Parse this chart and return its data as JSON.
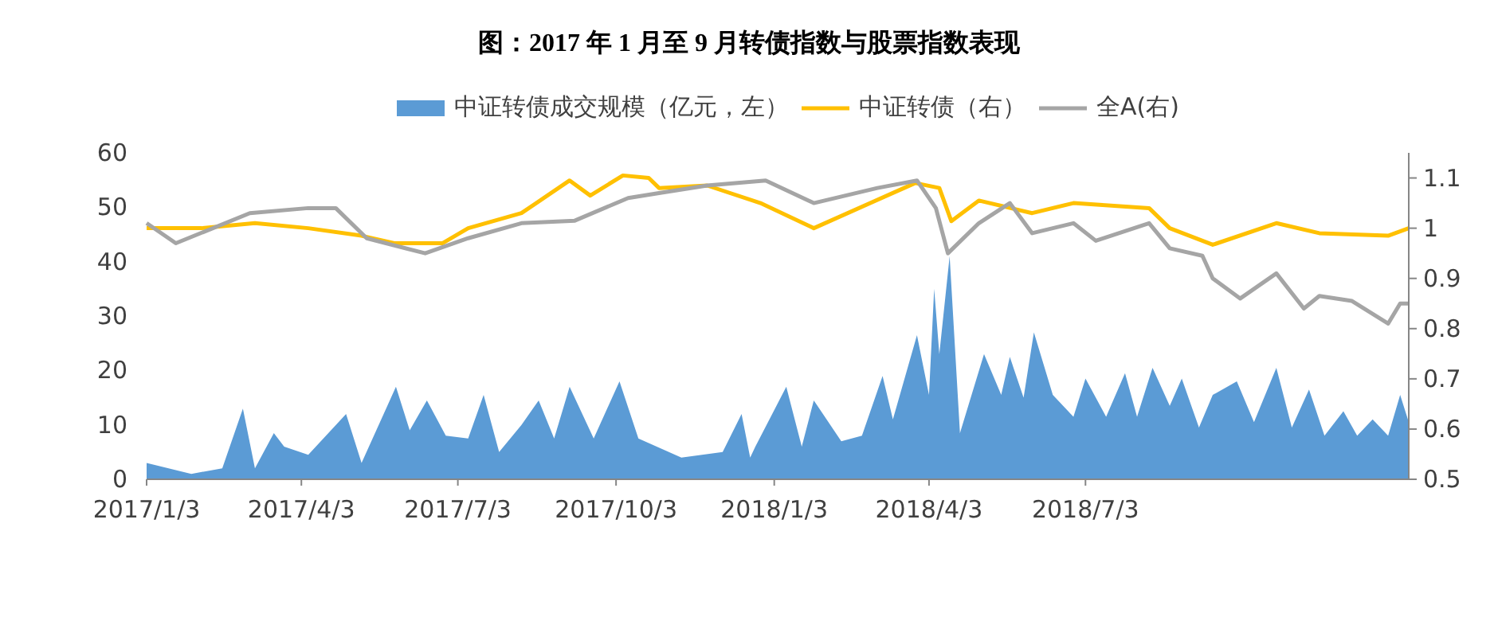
{
  "chart_data": {
    "type": "line",
    "title": "图：2017 年 1 月至 9 月转债指数与股票指数表现",
    "legend": "top",
    "grid": false,
    "xlim": [
      "2017-01-03",
      "2019-01-07"
    ],
    "xticks": [
      {
        "value": "2017-01-03",
        "label": "2017/1/3"
      },
      {
        "value": "2017-04-03",
        "label": "2017/4/3"
      },
      {
        "value": "2017-07-03",
        "label": "2017/7/3"
      },
      {
        "value": "2017-10-03",
        "label": "2017/10/3"
      },
      {
        "value": "2018-01-03",
        "label": "2018/1/3"
      },
      {
        "value": "2018-04-03",
        "label": "2018/4/3"
      },
      {
        "value": "2018-07-03",
        "label": "2018/7/3"
      }
    ],
    "ylim": [
      0,
      60
    ],
    "yticks": [
      0,
      10,
      20,
      30,
      40,
      50,
      60
    ],
    "y2lim": [
      0.5,
      1.15
    ],
    "y2ticks": [
      0.5,
      0.6,
      0.7,
      0.8,
      0.9,
      1,
      1.1
    ],
    "series": [
      {
        "name": "中证转债成交规模（亿元，左）",
        "type": "area",
        "color": "#5b9bd5",
        "x": [
          "2017-01-03",
          "2017-01-29",
          "2017-02-16",
          "2017-02-28",
          "2017-03-07",
          "2017-03-18",
          "2017-03-24",
          "2017-04-07",
          "2017-04-29",
          "2017-05-08",
          "2017-05-28",
          "2017-06-05",
          "2017-06-15",
          "2017-06-26",
          "2017-07-09",
          "2017-07-18",
          "2017-07-27",
          "2017-08-09",
          "2017-08-19",
          "2017-08-28",
          "2017-09-06",
          "2017-09-20",
          "2017-10-05",
          "2017-10-16",
          "2017-11-10",
          "2017-12-04",
          "2017-12-15",
          "2017-12-20",
          "2017-12-23",
          "2018-01-10",
          "2018-01-19",
          "2018-01-26",
          "2018-02-11",
          "2018-02-23",
          "2018-03-07",
          "2018-03-13",
          "2018-03-27",
          "2018-04-03",
          "2018-04-06",
          "2018-04-09",
          "2018-04-15",
          "2018-04-21",
          "2018-05-05",
          "2018-05-15",
          "2018-05-20",
          "2018-05-28",
          "2018-06-03",
          "2018-06-14",
          "2018-06-26",
          "2018-07-03",
          "2018-07-15",
          "2018-07-26",
          "2018-08-02",
          "2018-08-11",
          "2018-08-21",
          "2018-08-28",
          "2018-09-07",
          "2018-09-15",
          "2018-09-29",
          "2018-10-09",
          "2018-10-22",
          "2018-10-31",
          "2018-11-10",
          "2018-11-19",
          "2018-11-30",
          "2018-12-08",
          "2018-12-17",
          "2018-12-26",
          "2019-01-02",
          "2019-01-07"
        ],
        "values": [
          3,
          1,
          2,
          13,
          2,
          8.5,
          6,
          4.5,
          12,
          3,
          17,
          9,
          14.5,
          8,
          7.5,
          15.5,
          5,
          10,
          14.5,
          7.5,
          17,
          7.5,
          18,
          7.5,
          4,
          5,
          12,
          4,
          6,
          17,
          6,
          14.5,
          7,
          8,
          19,
          11,
          26.5,
          15.5,
          35,
          23,
          41,
          8.5,
          23,
          15.5,
          22.5,
          15,
          27,
          15.5,
          11.5,
          18.5,
          11.5,
          19.5,
          11.5,
          20.5,
          13.5,
          18.5,
          9.5,
          15.5,
          18,
          10.5,
          20.5,
          9.5,
          16.5,
          8,
          12.5,
          8,
          11,
          8,
          15.5,
          10.5
        ]
      },
      {
        "name": "中证转债（右）",
        "type": "line",
        "axis": "y2",
        "color": "#ffc000",
        "x": [
          "2017-01-03",
          "2017-02-04",
          "2017-03-07",
          "2017-04-07",
          "2017-05-08",
          "2017-05-27",
          "2017-06-24",
          "2017-07-09",
          "2017-08-09",
          "2017-09-06",
          "2017-09-18",
          "2017-10-07",
          "2017-10-22",
          "2017-10-28",
          "2017-11-25",
          "2017-12-26",
          "2018-01-26",
          "2018-03-26",
          "2018-04-09",
          "2018-04-16",
          "2018-05-02",
          "2018-06-02",
          "2018-06-26",
          "2018-08-09",
          "2018-08-21",
          "2018-09-15",
          "2018-10-22",
          "2018-11-16",
          "2018-12-26",
          "2019-01-07"
        ],
        "values": [
          1,
          1,
          1.01,
          1,
          0.985,
          0.97,
          0.97,
          1,
          1.03,
          1.095,
          1.065,
          1.105,
          1.1,
          1.08,
          1.085,
          1.05,
          1,
          1.09,
          1.08,
          1.014,
          1.055,
          1.03,
          1.05,
          1.04,
          1,
          0.967,
          1.01,
          0.99,
          0.985,
          1
        ]
      },
      {
        "name": "全A(右)",
        "type": "line",
        "axis": "y2",
        "color": "#a5a5a5",
        "x": [
          "2017-01-03",
          "2017-01-20",
          "2017-03-04",
          "2017-04-07",
          "2017-04-23",
          "2017-05-11",
          "2017-06-14",
          "2017-07-09",
          "2017-08-09",
          "2017-09-09",
          "2017-10-10",
          "2017-10-28",
          "2017-11-25",
          "2017-12-29",
          "2018-01-26",
          "2018-03-04",
          "2018-03-27",
          "2018-04-07",
          "2018-04-14",
          "2018-05-02",
          "2018-05-20",
          "2018-06-02",
          "2018-06-26",
          "2018-07-09",
          "2018-08-09",
          "2018-08-21",
          "2018-09-09",
          "2018-09-15",
          "2018-10-01",
          "2018-10-22",
          "2018-11-07",
          "2018-11-16",
          "2018-12-05",
          "2018-12-26",
          "2019-01-02",
          "2019-01-07"
        ],
        "values": [
          1.01,
          0.97,
          1.03,
          1.04,
          1.04,
          0.98,
          0.95,
          0.98,
          1.01,
          1.015,
          1.06,
          1.07,
          1.085,
          1.095,
          1.05,
          1.08,
          1.095,
          1.04,
          0.95,
          1.01,
          1.05,
          0.99,
          1.01,
          0.975,
          1.01,
          0.96,
          0.945,
          0.9,
          0.86,
          0.91,
          0.84,
          0.865,
          0.855,
          0.81,
          0.85,
          0.85
        ]
      }
    ]
  }
}
